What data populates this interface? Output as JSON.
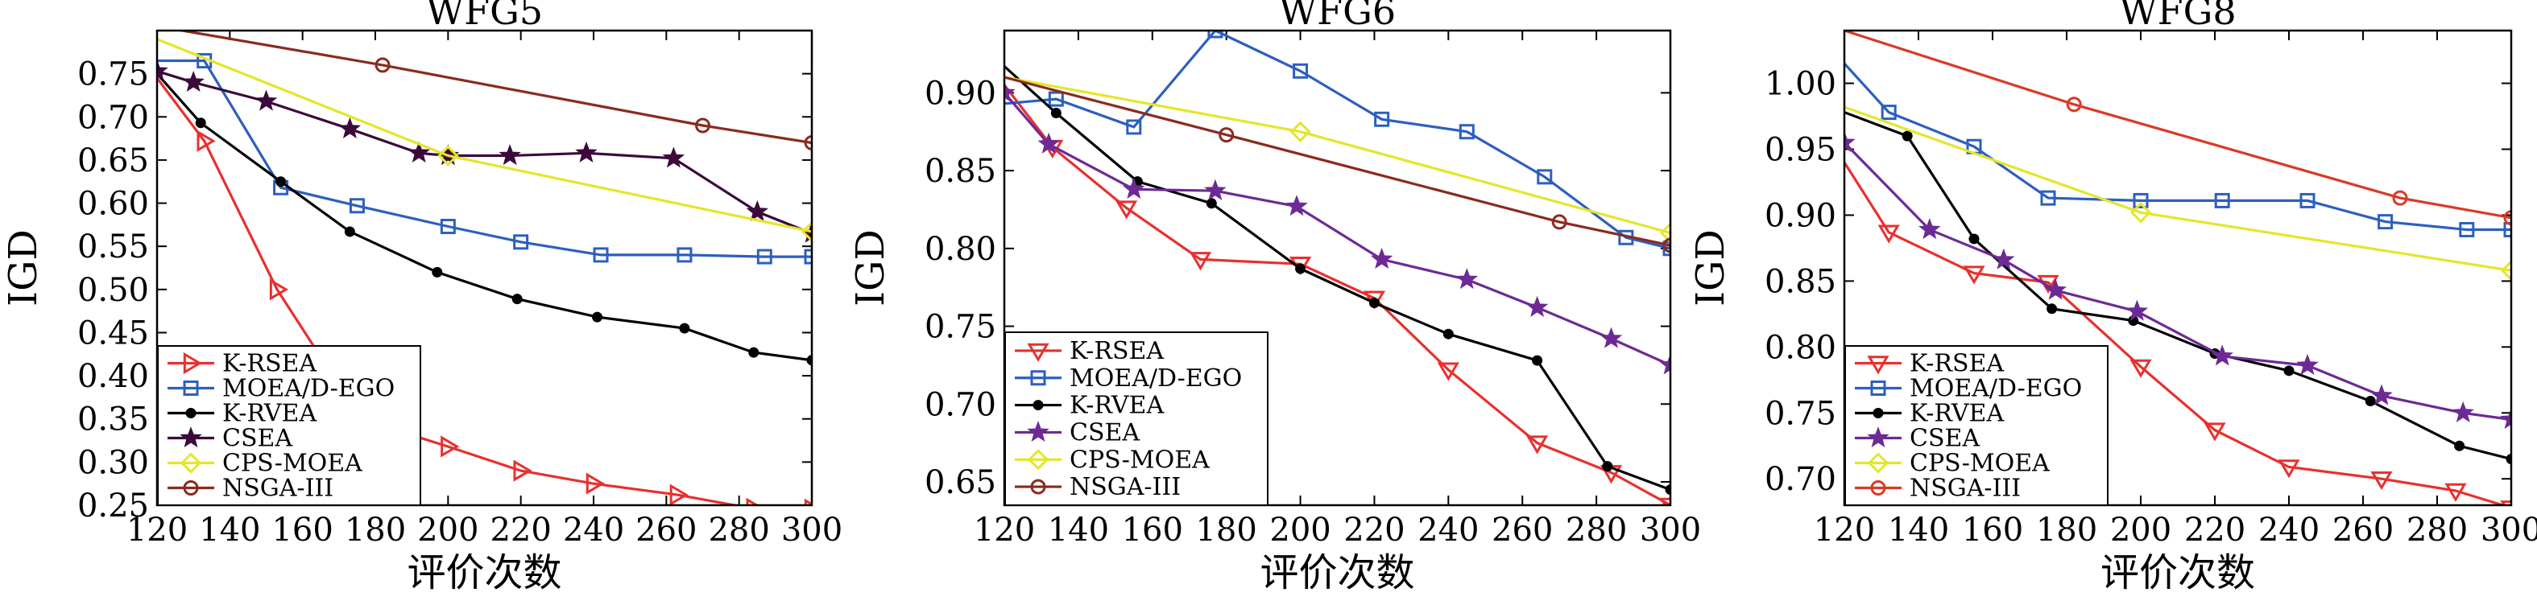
{
  "chart_data": [
    {
      "type": "line",
      "title": "WFG5",
      "xlabel": "评价次数",
      "ylabel": "IGD",
      "xlim": [
        120,
        300
      ],
      "ylim": [
        0.25,
        0.8
      ],
      "xticks": [
        120,
        140,
        160,
        180,
        200,
        220,
        240,
        260,
        280,
        300
      ],
      "yticks": [
        0.25,
        0.3,
        0.35,
        0.4,
        0.45,
        0.5,
        0.55,
        0.6,
        0.65,
        0.7,
        0.75
      ],
      "ytick_labels": [
        "0.25",
        "0.30",
        "0.35",
        "0.40",
        "0.45",
        "0.50",
        "0.55",
        "0.60",
        "0.65",
        "0.70",
        "0.75"
      ],
      "legend_position": "bottom-left",
      "series": [
        {
          "name": "K-RSEA",
          "color": "#e8302e",
          "marker": "triangle-right",
          "x": [
            120,
            133,
            153,
            176,
            200,
            220,
            240,
            263,
            284,
            300
          ],
          "y": [
            0.745,
            0.672,
            0.5,
            0.35,
            0.318,
            0.29,
            0.275,
            0.262,
            0.246,
            0.245
          ]
        },
        {
          "name": "MOEA/D-EGO",
          "color": "#2c5fc0",
          "marker": "square",
          "x": [
            120,
            133,
            154,
            175,
            200,
            220,
            242,
            265,
            287,
            300
          ],
          "y": [
            0.765,
            0.765,
            0.618,
            0.597,
            0.573,
            0.555,
            0.54,
            0.54,
            0.538,
            0.538
          ]
        },
        {
          "name": "K-RVEA",
          "color": "#000000",
          "marker": "dot",
          "x": [
            120,
            132,
            154,
            173,
            197,
            219,
            241,
            265,
            284,
            300
          ],
          "y": [
            0.75,
            0.693,
            0.625,
            0.567,
            0.52,
            0.489,
            0.468,
            0.455,
            0.427,
            0.418
          ]
        },
        {
          "name": "CSEA",
          "color": "#3b0a3a",
          "marker": "star",
          "x": [
            120,
            130,
            150,
            173,
            192,
            200,
            217,
            238,
            262,
            285,
            300
          ],
          "y": [
            0.753,
            0.74,
            0.718,
            0.686,
            0.658,
            0.655,
            0.655,
            0.658,
            0.652,
            0.59,
            0.565
          ]
        },
        {
          "name": "CPS-MOEA",
          "color": "#e4e62a",
          "marker": "diamond",
          "x": [
            120,
            200,
            300
          ],
          "y": [
            0.79,
            0.655,
            0.567
          ]
        },
        {
          "name": "NSGA-III",
          "color": "#8b2a1e",
          "marker": "circle",
          "x": [
            120,
            182,
            270,
            300
          ],
          "y": [
            0.805,
            0.76,
            0.69,
            0.67
          ]
        }
      ]
    },
    {
      "type": "line",
      "title": "WFG6",
      "xlabel": "评价次数",
      "ylabel": "IGD",
      "xlim": [
        120,
        300
      ],
      "ylim": [
        0.635,
        0.94
      ],
      "xticks": [
        120,
        140,
        160,
        180,
        200,
        220,
        240,
        260,
        280,
        300
      ],
      "yticks": [
        0.65,
        0.7,
        0.75,
        0.8,
        0.85,
        0.9
      ],
      "ytick_labels": [
        "0.65",
        "0.70",
        "0.75",
        "0.80",
        "0.85",
        "0.90"
      ],
      "legend_position": "bottom-left",
      "series": [
        {
          "name": "K-RSEA",
          "color": "#e8302e",
          "marker": "triangle-down",
          "x": [
            120,
            133,
            153,
            173,
            200,
            220,
            240,
            264,
            284,
            300
          ],
          "y": [
            0.905,
            0.865,
            0.826,
            0.793,
            0.79,
            0.768,
            0.722,
            0.675,
            0.656,
            0.635
          ]
        },
        {
          "name": "MOEA/D-EGO",
          "color": "#2c5fc0",
          "marker": "square",
          "x": [
            120,
            134,
            155,
            177,
            200,
            222,
            245,
            266,
            288,
            300
          ],
          "y": [
            0.893,
            0.896,
            0.878,
            0.94,
            0.914,
            0.883,
            0.875,
            0.846,
            0.807,
            0.8
          ]
        },
        {
          "name": "K-RVEA",
          "color": "#000000",
          "marker": "dot",
          "x": [
            120,
            134,
            156,
            176,
            200,
            220,
            240,
            264,
            283,
            300
          ],
          "y": [
            0.917,
            0.887,
            0.843,
            0.829,
            0.787,
            0.765,
            0.745,
            0.728,
            0.66,
            0.645
          ]
        },
        {
          "name": "CSEA",
          "color": "#6d2a94",
          "marker": "star",
          "x": [
            120,
            132,
            155,
            177,
            199,
            222,
            245,
            264,
            284,
            300
          ],
          "y": [
            0.9,
            0.867,
            0.838,
            0.837,
            0.827,
            0.793,
            0.78,
            0.762,
            0.742,
            0.725
          ]
        },
        {
          "name": "CPS-MOEA",
          "color": "#e4e62a",
          "marker": "diamond",
          "x": [
            120,
            200,
            300
          ],
          "y": [
            0.91,
            0.875,
            0.81
          ]
        },
        {
          "name": "NSGA-III",
          "color": "#8b2a1e",
          "marker": "circle",
          "x": [
            120,
            180,
            270,
            300
          ],
          "y": [
            0.91,
            0.873,
            0.817,
            0.802
          ]
        }
      ]
    },
    {
      "type": "line",
      "title": "WFG8",
      "xlabel": "评价次数",
      "ylabel": "IGD",
      "xlim": [
        120,
        300
      ],
      "ylim": [
        0.68,
        1.04
      ],
      "xticks": [
        120,
        140,
        160,
        180,
        200,
        220,
        240,
        260,
        280,
        300
      ],
      "yticks": [
        0.7,
        0.75,
        0.8,
        0.85,
        0.9,
        0.95,
        1.0
      ],
      "ytick_labels": [
        "0.70",
        "0.75",
        "0.80",
        "0.85",
        "0.90",
        "0.95",
        "1.00"
      ],
      "legend_position": "bottom-left",
      "series": [
        {
          "name": "K-RSEA",
          "color": "#e8302e",
          "marker": "triangle-down",
          "x": [
            120,
            132,
            155,
            175,
            200,
            220,
            240,
            265,
            285,
            300
          ],
          "y": [
            0.94,
            0.887,
            0.856,
            0.849,
            0.785,
            0.737,
            0.709,
            0.7,
            0.691,
            0.678
          ]
        },
        {
          "name": "MOEA/D-EGO",
          "color": "#2c5fc0",
          "marker": "square",
          "x": [
            120,
            132,
            155,
            175,
            200,
            222,
            245,
            266,
            288,
            300
          ],
          "y": [
            1.015,
            0.978,
            0.952,
            0.913,
            0.911,
            0.911,
            0.911,
            0.895,
            0.889,
            0.889
          ]
        },
        {
          "name": "K-RVEA",
          "color": "#000000",
          "marker": "dot",
          "x": [
            120,
            137,
            155,
            176,
            198,
            220,
            240,
            262,
            286,
            300
          ],
          "y": [
            0.978,
            0.96,
            0.882,
            0.829,
            0.82,
            0.795,
            0.782,
            0.759,
            0.725,
            0.715
          ]
        },
        {
          "name": "CSEA",
          "color": "#6d2a94",
          "marker": "star",
          "x": [
            120,
            143,
            163,
            177,
            199,
            222,
            245,
            265,
            287,
            300
          ],
          "y": [
            0.955,
            0.889,
            0.866,
            0.843,
            0.827,
            0.793,
            0.786,
            0.763,
            0.75,
            0.745
          ]
        },
        {
          "name": "CPS-MOEA",
          "color": "#e4e62a",
          "marker": "diamond",
          "x": [
            120,
            200,
            300
          ],
          "y": [
            0.982,
            0.902,
            0.858
          ]
        },
        {
          "name": "NSGA-III",
          "color": "#d93a26",
          "marker": "circle",
          "x": [
            120,
            182,
            270,
            300
          ],
          "y": [
            1.04,
            0.984,
            0.913,
            0.898
          ]
        }
      ]
    }
  ]
}
